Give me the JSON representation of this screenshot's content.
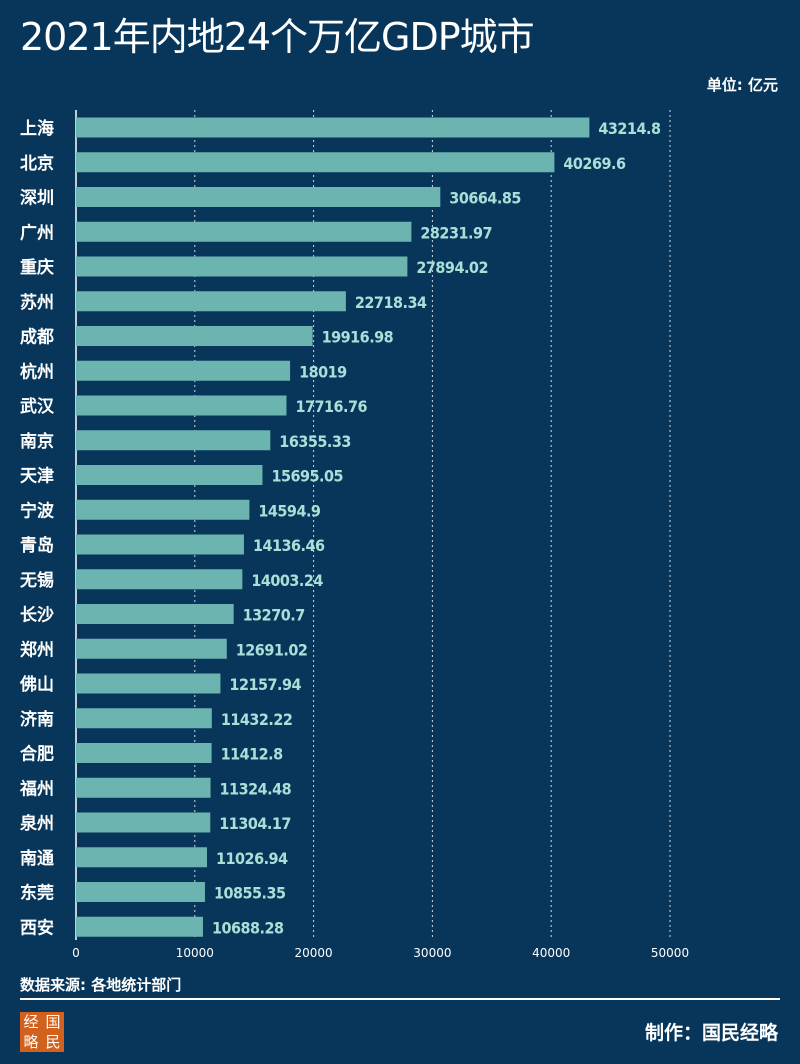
{
  "header": {
    "title": "2021年内地24个万亿GDP城市",
    "unit": "单位: 亿元"
  },
  "footer": {
    "source": "数据来源: 各地统计部门",
    "credit": "制作：国民经略",
    "logo_chars": [
      "经",
      "国",
      "略",
      "民"
    ]
  },
  "colors": {
    "background": "#07365a",
    "bar": "#6cb4b0",
    "value_label": "#a8e0d8",
    "grid": "#cfd8e0",
    "logo": "#d2611e"
  },
  "chart_data": {
    "type": "bar",
    "orientation": "horizontal",
    "categories": [
      "上海",
      "北京",
      "深圳",
      "广州",
      "重庆",
      "苏州",
      "成都",
      "杭州",
      "武汉",
      "南京",
      "天津",
      "宁波",
      "青岛",
      "无锡",
      "长沙",
      "郑州",
      "佛山",
      "济南",
      "合肥",
      "福州",
      "泉州",
      "南通",
      "东莞",
      "西安"
    ],
    "values": [
      43214.8,
      40269.6,
      30664.85,
      28231.97,
      27894.02,
      22718.34,
      19916.98,
      18019,
      17716.76,
      16355.33,
      15695.05,
      14594.9,
      14136.46,
      14003.24,
      13270.7,
      12691.02,
      12157.94,
      11432.22,
      11412.8,
      11324.48,
      11304.17,
      11026.94,
      10855.35,
      10688.28
    ],
    "value_labels": [
      "43214.8",
      "40269.6",
      "30664.85",
      "28231.97",
      "27894.02",
      "22718.34",
      "19916.98",
      "18019",
      "17716.76",
      "16355.33",
      "15695.05",
      "14594.9",
      "14136.46",
      "14003.24",
      "13270.7",
      "12691.02",
      "12157.94",
      "11432.22",
      "11412.8",
      "11324.48",
      "11304.17",
      "11026.94",
      "10855.35",
      "10688.28"
    ],
    "xlim": [
      0,
      50000
    ],
    "xticks": [
      0,
      10000,
      20000,
      30000,
      40000,
      50000
    ],
    "grid": "vertical dotted",
    "title": "2021年内地24个万亿GDP城市",
    "unit": "单位: 亿元"
  }
}
